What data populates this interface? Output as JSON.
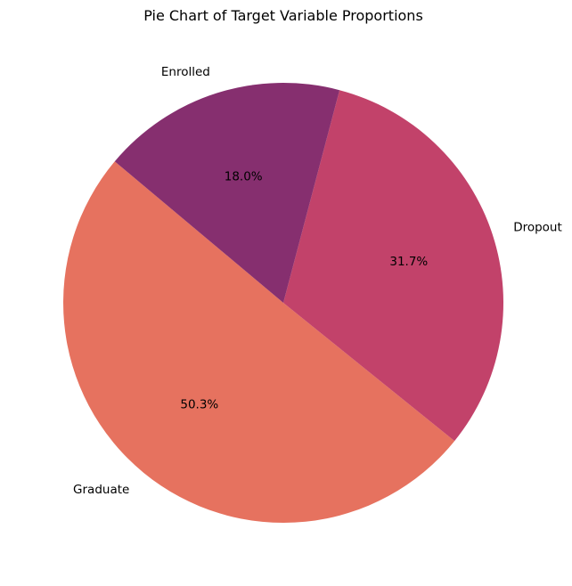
{
  "chart_data": {
    "type": "pie",
    "title": "Pie Chart of Target Variable Proportions",
    "start_angle_deg": 140,
    "direction": "counterclockwise",
    "slices": [
      {
        "label": "Graduate",
        "value": 50.3,
        "pct_label": "50.3%",
        "color": "#e6725f"
      },
      {
        "label": "Dropout",
        "value": 31.7,
        "pct_label": "31.7%",
        "color": "#c2426a"
      },
      {
        "label": "Enrolled",
        "value": 18.0,
        "pct_label": "18.0%",
        "color": "#862f6f"
      }
    ],
    "legend": "none"
  }
}
